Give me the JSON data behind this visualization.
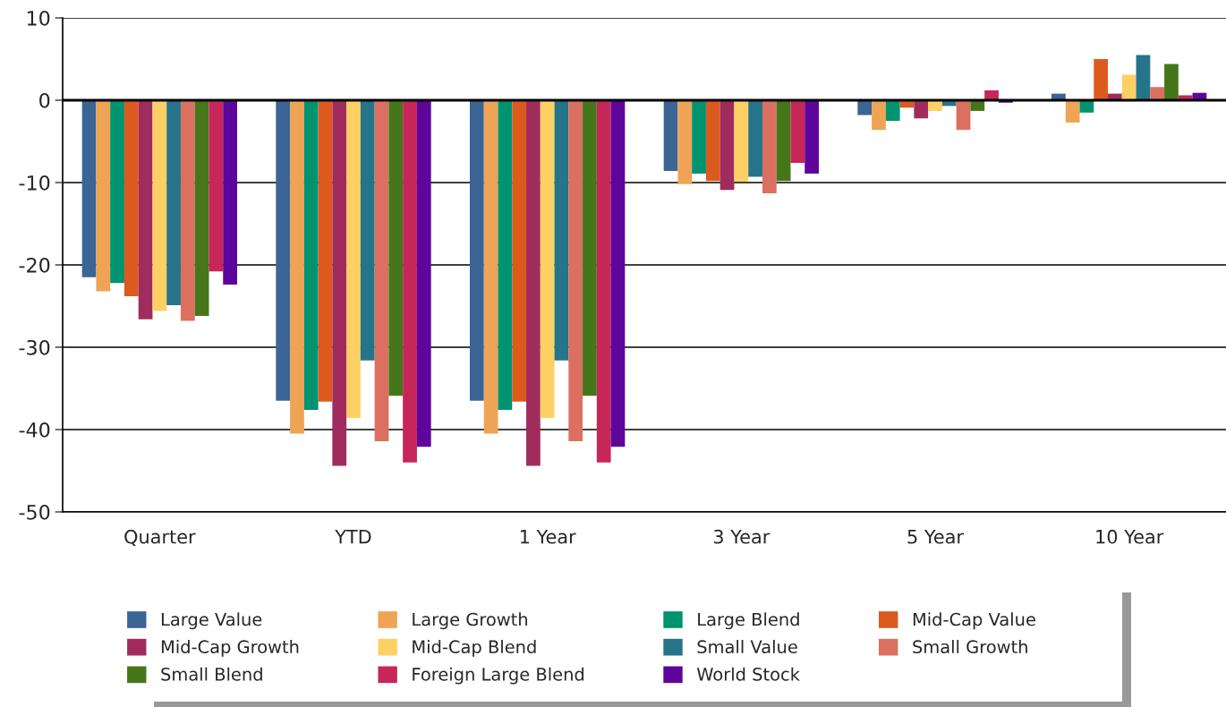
{
  "chart_data": {
    "type": "bar",
    "categories": [
      "Quarter",
      "YTD",
      "1 Year",
      "3 Year",
      "5 Year",
      "10 Year"
    ],
    "series": [
      {
        "name": "Large Value",
        "color": "#3a6595",
        "values": [
          -21.5,
          -36.5,
          -36.5,
          -8.6,
          -1.8,
          0.8
        ]
      },
      {
        "name": "Large Growth",
        "color": "#efa354",
        "values": [
          -23.2,
          -40.5,
          -40.5,
          -10.2,
          -3.6,
          -2.7
        ]
      },
      {
        "name": "Large Blend",
        "color": "#009370",
        "values": [
          -22.2,
          -37.6,
          -37.6,
          -8.9,
          -2.5,
          -1.5
        ]
      },
      {
        "name": "Mid-Cap Value",
        "color": "#dd5a1f",
        "values": [
          -23.8,
          -36.6,
          -36.6,
          -9.8,
          -0.9,
          5.0
        ]
      },
      {
        "name": "Mid-Cap Growth",
        "color": "#a02c5e",
        "values": [
          -26.6,
          -44.4,
          -44.4,
          -10.9,
          -2.2,
          0.8
        ]
      },
      {
        "name": "Mid-Cap Blend",
        "color": "#fdd064",
        "values": [
          -25.6,
          -38.6,
          -38.6,
          -9.9,
          -1.3,
          3.1
        ]
      },
      {
        "name": "Small Value",
        "color": "#25748a",
        "values": [
          -24.9,
          -31.6,
          -31.6,
          -9.3,
          -0.7,
          5.5
        ]
      },
      {
        "name": "Small Growth",
        "color": "#db7060",
        "values": [
          -26.8,
          -41.4,
          -41.4,
          -11.3,
          -3.6,
          1.6
        ]
      },
      {
        "name": "Small Blend",
        "color": "#46761a",
        "values": [
          -26.2,
          -35.9,
          -35.9,
          -9.8,
          -1.3,
          4.4
        ]
      },
      {
        "name": "Foreign Large Blend",
        "color": "#c72659",
        "values": [
          -20.8,
          -44.0,
          -44.0,
          -7.6,
          1.2,
          0.6
        ]
      },
      {
        "name": "World Stock",
        "color": "#5e069c",
        "values": [
          -22.4,
          -42.1,
          -42.1,
          -8.9,
          -0.3,
          0.9
        ]
      }
    ],
    "ylim": [
      -50,
      10
    ],
    "yticks": [
      -50,
      -40,
      -30,
      -20,
      -10,
      0,
      10
    ],
    "ref_lines": [
      {
        "axis": "y",
        "value": 0,
        "color": "#000000"
      }
    ],
    "grid": "y",
    "legend": "bottom"
  }
}
